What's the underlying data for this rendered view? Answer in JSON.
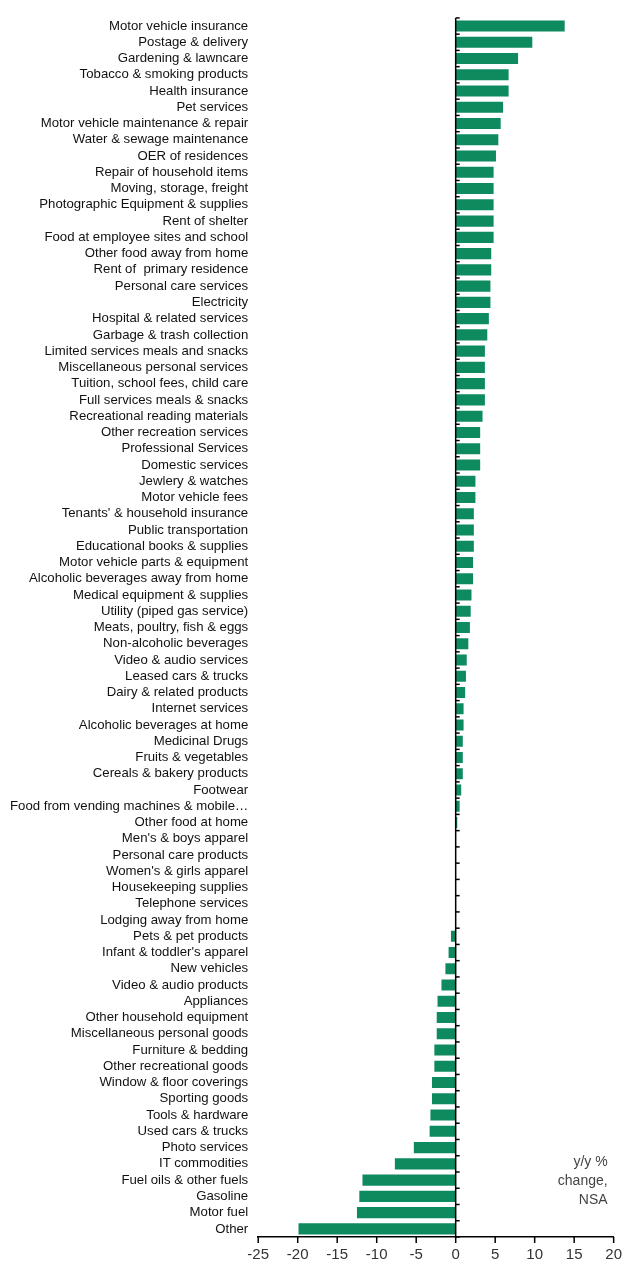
{
  "chart_data": {
    "type": "bar",
    "orientation": "horizontal",
    "categories": [
      "Motor vehicle insurance",
      "Postage & delivery",
      "Gardening & lawncare",
      "Tobacco & smoking products",
      "Health insurance",
      "Pet services",
      "Motor vehicle maintenance & repair",
      "Water & sewage maintenance",
      "OER of residences",
      "Repair of household items",
      "Moving, storage, freight",
      "Photographic Equipment & supplies",
      "Rent of shelter",
      "Food at employee sites and school",
      "Other food away from home",
      "Rent of  primary residence",
      "Personal care services",
      "Electricity",
      "Hospital & related services",
      "Garbage & trash collection",
      "Limited services meals and snacks",
      "Miscellaneous personal services",
      "Tuition, school fees, child care",
      "Full services meals & snacks",
      "Recreational reading materials",
      "Other recreation services",
      "Professional Services",
      "Domestic services",
      "Jewlery & watches",
      "Motor vehicle fees",
      "Tenants' & household insurance",
      "Public transportation",
      "Educational books & supplies",
      "Motor vehicle parts & equipment",
      "Alcoholic beverages away from home",
      "Medical equipment & supplies",
      "Utility (piped gas service)",
      "Meats, poultry, fish & eggs",
      "Non-alcoholic beverages",
      "Video & audio services",
      "Leased cars & trucks",
      "Dairy & related products",
      "Internet services",
      "Alcoholic beverages at home",
      "Medicinal Drugs",
      "Fruits & vegetables",
      "Cereals & bakery products",
      "Footwear",
      "Food from vending machines & mobile…",
      "Other food at home",
      "Men's & boys apparel",
      "Personal care products",
      "Women's & girls apparel",
      "Housekeeping supplies",
      "Telephone services",
      "Lodging away from home",
      "Pets & pet products",
      "Infant & toddler's apparel",
      "New vehicles",
      "Video & audio products",
      "Appliances",
      "Other household equipment",
      "Miscellaneous personal goods",
      "Furniture & bedding",
      "Other recreational goods",
      "Window & floor coverings",
      "Sporting goods",
      "Tools & hardware",
      "Used cars & trucks",
      "Photo services",
      "IT commodities",
      "Fuel oils & other fuels",
      "Gasoline",
      "Motor fuel",
      "Other"
    ],
    "values": [
      13.8,
      9.7,
      7.9,
      6.7,
      6.7,
      6.0,
      5.7,
      5.4,
      5.1,
      4.8,
      4.8,
      4.8,
      4.8,
      4.8,
      4.5,
      4.5,
      4.4,
      4.4,
      4.2,
      4.0,
      3.7,
      3.7,
      3.7,
      3.7,
      3.4,
      3.1,
      3.1,
      3.1,
      2.5,
      2.5,
      2.3,
      2.3,
      2.3,
      2.2,
      2.2,
      2.0,
      1.9,
      1.8,
      1.6,
      1.4,
      1.3,
      1.2,
      1.0,
      1.0,
      0.9,
      0.9,
      0.9,
      0.7,
      0.5,
      0.2,
      0,
      0,
      0,
      0,
      0,
      0,
      -0.6,
      -0.9,
      -1.3,
      -1.8,
      -2.3,
      -2.4,
      -2.4,
      -2.7,
      -2.7,
      -3.0,
      -3.0,
      -3.2,
      -3.3,
      -5.3,
      -7.7,
      -11.8,
      -12.2,
      -12.5,
      -19.9
    ],
    "color": "#0e8a5f",
    "xlim": [
      -25,
      20
    ],
    "xticks": [
      -25,
      -20,
      -15,
      -10,
      -5,
      0,
      5,
      10,
      15,
      20
    ],
    "legend": false,
    "annotations": [
      "y/y % change, NSA"
    ]
  }
}
